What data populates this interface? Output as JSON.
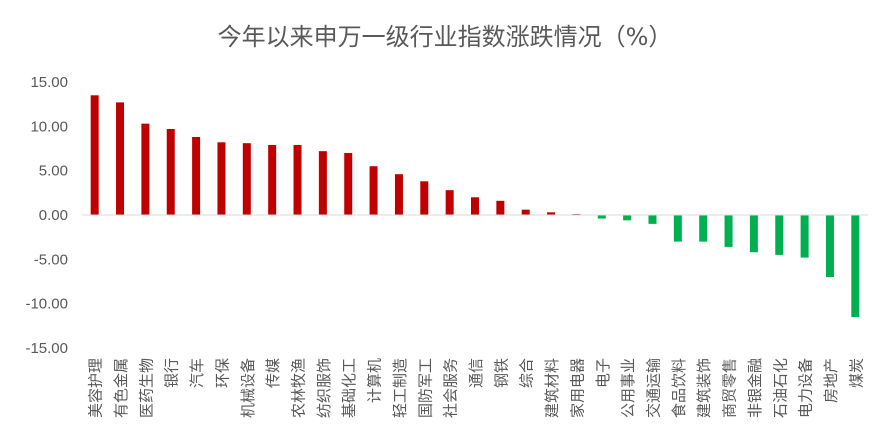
{
  "chart_data": {
    "type": "bar",
    "title": "今年以来申万一级行业指数涨跌情况（%）",
    "xlabel": "",
    "ylabel": "",
    "ylim": [
      -15,
      15
    ],
    "y_ticks": [
      "15.00",
      "10.00",
      "5.00",
      "0.00",
      "-5.00",
      "-10.00",
      "-15.00"
    ],
    "y_tick_values": [
      15,
      10,
      5,
      0,
      -5,
      -10,
      -15
    ],
    "grid": false,
    "legend": "none",
    "positive_color": "#c00000",
    "negative_color": "#00b050",
    "categories": [
      "美容护理",
      "有色金属",
      "医药生物",
      "银行",
      "汽车",
      "环保",
      "机械设备",
      "传媒",
      "农林牧渔",
      "纺织服饰",
      "基础化工",
      "计算机",
      "轻工制造",
      "国防军工",
      "社会服务",
      "通信",
      "钢铁",
      "综合",
      "建筑材料",
      "家用电器",
      "电子",
      "公用事业",
      "交通运输",
      "食品饮料",
      "建筑装饰",
      "商贸零售",
      "非银金融",
      "石油石化",
      "电力设备",
      "房地产",
      "煤炭"
    ],
    "values": [
      13.5,
      12.7,
      10.3,
      9.7,
      8.8,
      8.2,
      8.1,
      7.9,
      7.9,
      7.2,
      7.0,
      5.5,
      4.6,
      3.8,
      2.8,
      2.0,
      1.6,
      0.6,
      0.3,
      0.1,
      -0.4,
      -0.6,
      -1.0,
      -3.0,
      -3.0,
      -3.6,
      -4.2,
      -4.5,
      -4.8,
      -7.0,
      -11.5
    ]
  }
}
